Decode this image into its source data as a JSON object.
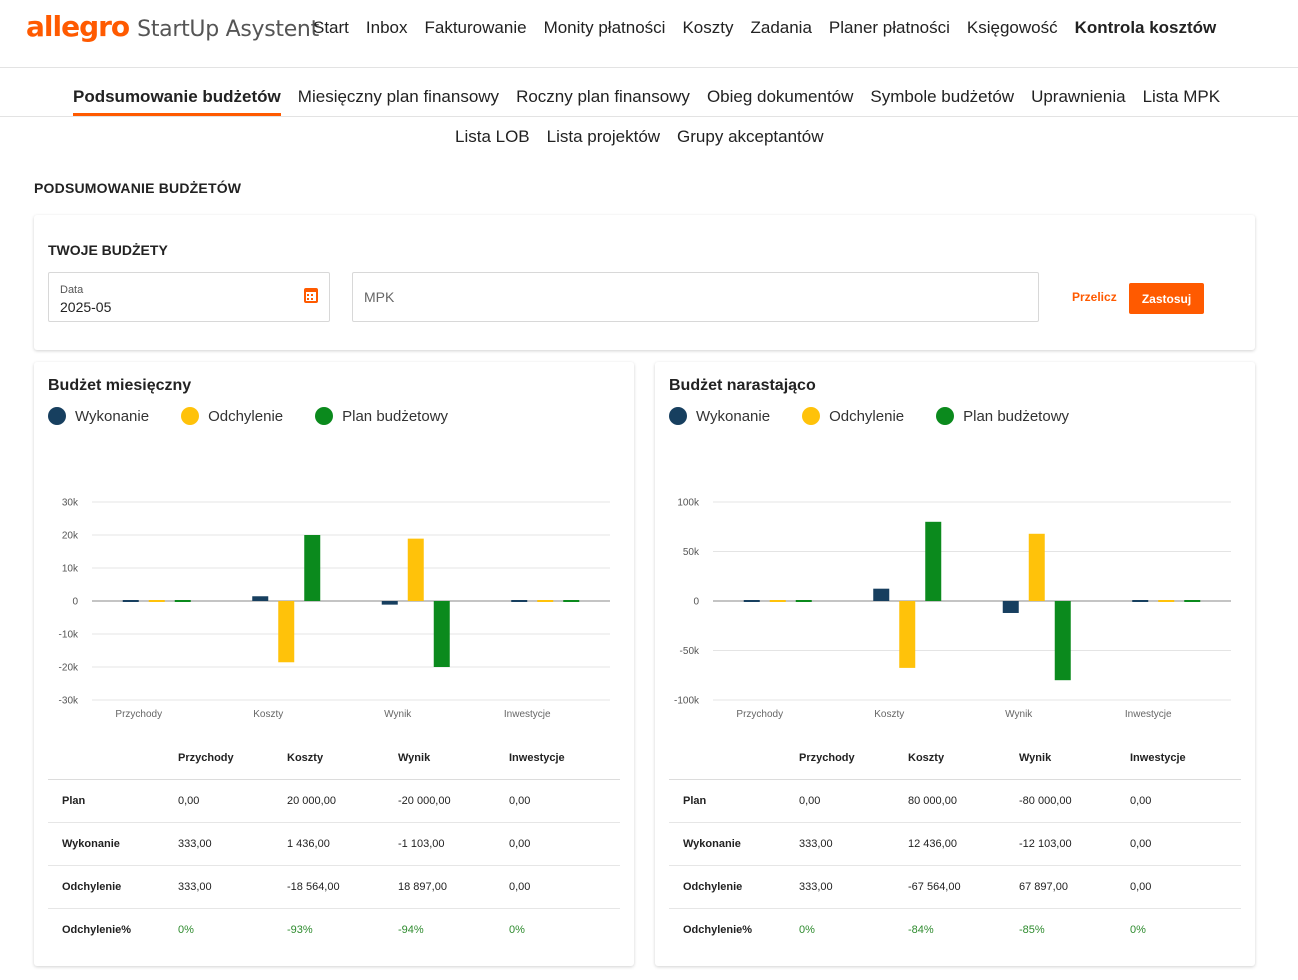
{
  "brand": {
    "logo": "allegro",
    "product": "StartUp Asystent"
  },
  "main_nav": [
    "Start",
    "Inbox",
    "Fakturowanie",
    "Monity płatności",
    "Koszty",
    "Zadania",
    "Planer płatności",
    "Księgowość",
    "Kontrola kosztów"
  ],
  "main_nav_active": "Kontrola kosztów",
  "sub_nav_row1": [
    "Podsumowanie budżetów",
    "Miesięczny plan finansowy",
    "Roczny plan finansowy",
    "Obieg dokumentów",
    "Symbole budżetów",
    "Uprawnienia",
    "Lista MPK"
  ],
  "sub_nav_row2": [
    "Lista LOB",
    "Lista projektów",
    "Grupy akceptantów"
  ],
  "sub_nav_active": "Podsumowanie budżetów",
  "page_title": "PODSUMOWANIE BUDŻETÓW",
  "filters": {
    "heading": "TWOJE BUDŻETY",
    "date_label": "Data",
    "date_value": "2025-05",
    "calendar_icon": "calendar-icon",
    "mpk_placeholder": "MPK",
    "mpk_value": "",
    "recalc_label": "Przelicz",
    "apply_label": "Zastosuj"
  },
  "colors": {
    "accent": "#ff5a00",
    "wykonanie": "#173f5f",
    "odchylenie": "#ffc20a",
    "plan": "#0b8a1d",
    "positive_pct": "#2e8b2e"
  },
  "legend": [
    "Wykonanie",
    "Odchylenie",
    "Plan budżetowy"
  ],
  "table_columns": [
    "",
    "Przychody",
    "Koszty",
    "Wynik",
    "Inwestycje"
  ],
  "monthly": {
    "title": "Budżet miesięczny",
    "rows": [
      {
        "label": "Plan",
        "values": [
          "0,00",
          "20 000,00",
          "-20 000,00",
          "0,00"
        ]
      },
      {
        "label": "Wykonanie",
        "values": [
          "333,00",
          "1 436,00",
          "-1 103,00",
          "0,00"
        ]
      },
      {
        "label": "Odchylenie",
        "values": [
          "333,00",
          "-18 564,00",
          "18 897,00",
          "0,00"
        ]
      },
      {
        "label": "Odchylenie%",
        "values": [
          "0%",
          "-93%",
          "-94%",
          "0%"
        ]
      }
    ]
  },
  "cumulative": {
    "title": "Budżet narastająco",
    "rows": [
      {
        "label": "Plan",
        "values": [
          "0,00",
          "80 000,00",
          "-80 000,00",
          "0,00"
        ]
      },
      {
        "label": "Wykonanie",
        "values": [
          "333,00",
          "12 436,00",
          "-12 103,00",
          "0,00"
        ]
      },
      {
        "label": "Odchylenie",
        "values": [
          "333,00",
          "-67 564,00",
          "67 897,00",
          "0,00"
        ]
      },
      {
        "label": "Odchylenie%",
        "values": [
          "0%",
          "-84%",
          "-85%",
          "0%"
        ]
      }
    ]
  },
  "chart_data": [
    {
      "type": "bar",
      "title": "Budżet miesięczny",
      "categories": [
        "Przychody",
        "Koszty",
        "Wynik",
        "Inwestycje"
      ],
      "series": [
        {
          "name": "Wykonanie",
          "values": [
            333,
            1436,
            -1103,
            0
          ]
        },
        {
          "name": "Odchylenie",
          "values": [
            333,
            -18564,
            18897,
            0
          ]
        },
        {
          "name": "Plan budżetowy",
          "values": [
            0,
            20000,
            -20000,
            0
          ]
        }
      ],
      "yticks": [
        30000,
        20000,
        10000,
        0,
        -10000,
        -20000,
        -30000
      ],
      "ytick_labels": [
        "30k",
        "20k",
        "10k",
        "0",
        "-10k",
        "-20k",
        "-30k"
      ],
      "ylim": [
        -30000,
        30000
      ],
      "grid": true,
      "legend_position": "top-left"
    },
    {
      "type": "bar",
      "title": "Budżet narastająco",
      "categories": [
        "Przychody",
        "Koszty",
        "Wynik",
        "Inwestycje"
      ],
      "series": [
        {
          "name": "Wykonanie",
          "values": [
            333,
            12436,
            -12103,
            0
          ]
        },
        {
          "name": "Odchylenie",
          "values": [
            333,
            -67564,
            67897,
            0
          ]
        },
        {
          "name": "Plan budżetowy",
          "values": [
            0,
            80000,
            -80000,
            0
          ]
        }
      ],
      "yticks": [
        100000,
        50000,
        0,
        -50000,
        -100000
      ],
      "ytick_labels": [
        "100k",
        "50k",
        "0",
        "-50k",
        "-100k"
      ],
      "ylim": [
        -100000,
        100000
      ],
      "grid": true,
      "legend_position": "top-left"
    }
  ]
}
